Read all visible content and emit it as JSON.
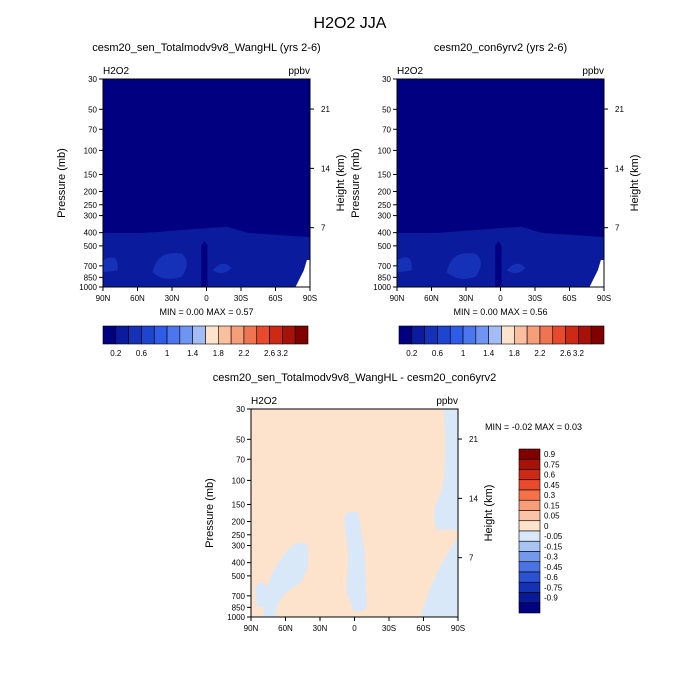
{
  "title": "H2O2 JJA",
  "chart_data": [
    {
      "type": "heatmap",
      "title": "cesm20_sen_Totalmodv9v8_WangHL (yrs 2-6)",
      "variable": "H2O2",
      "units": "ppbv",
      "xlabel": "",
      "ylabel": "Pressure (mb)",
      "ylabel_right": "Height (km)",
      "x_ticks": [
        "90N",
        "60N",
        "30N",
        "0",
        "30S",
        "60S",
        "90S"
      ],
      "y_ticks": [
        "30",
        "50",
        "70",
        "100",
        "150",
        "200",
        "250",
        "300",
        "400",
        "500",
        "700",
        "850",
        "1000"
      ],
      "height_ticks": [
        "21",
        "14",
        "7"
      ],
      "ylim": [
        1000,
        30
      ],
      "stats": {
        "min_label": "MIN =",
        "min": "0.00",
        "max_label": "MAX =",
        "max": "0.57"
      },
      "colorbar": {
        "labels": [
          "0.2",
          "0.6",
          "1",
          "1.4",
          "1.8",
          "2.2",
          "2.6",
          "3.2"
        ],
        "colors": [
          "#000080",
          "#0a1b9e",
          "#1531b8",
          "#1f45ce",
          "#2f5be6",
          "#4c76ee",
          "#6f94f2",
          "#a4bcf6",
          "#fde3cb",
          "#f9c0a0",
          "#f59e79",
          "#ef7450",
          "#e94a2d",
          "#cc2a15",
          "#a71208",
          "#800000"
        ]
      },
      "contours": [
        {
          "level": "0.0-0.2",
          "color": "#000080"
        },
        {
          "level": "0.2-0.4",
          "color": "#0a1b9e"
        },
        {
          "level": "0.4-0.6",
          "color": "#1531b8"
        }
      ]
    },
    {
      "type": "heatmap",
      "title": "cesm20_con6yrv2 (yrs 2-6)",
      "variable": "H2O2",
      "units": "ppbv",
      "xlabel": "",
      "ylabel": "Pressure (mb)",
      "ylabel_right": "Height (km)",
      "x_ticks": [
        "90N",
        "60N",
        "30N",
        "0",
        "30S",
        "60S",
        "90S"
      ],
      "y_ticks": [
        "30",
        "50",
        "70",
        "100",
        "150",
        "200",
        "250",
        "300",
        "400",
        "500",
        "700",
        "850",
        "1000"
      ],
      "height_ticks": [
        "21",
        "14",
        "7"
      ],
      "ylim": [
        1000,
        30
      ],
      "stats": {
        "min_label": "MIN =",
        "min": "0.00",
        "max_label": "MAX =",
        "max": "0.56"
      },
      "colorbar": {
        "labels": [
          "0.2",
          "0.6",
          "1",
          "1.4",
          "1.8",
          "2.2",
          "2.6",
          "3.2"
        ],
        "colors": [
          "#000080",
          "#0a1b9e",
          "#1531b8",
          "#1f45ce",
          "#2f5be6",
          "#4c76ee",
          "#6f94f2",
          "#a4bcf6",
          "#fde3cb",
          "#f9c0a0",
          "#f59e79",
          "#ef7450",
          "#e94a2d",
          "#cc2a15",
          "#a71208",
          "#800000"
        ]
      },
      "contours": [
        {
          "level": "0.0-0.2",
          "color": "#000080"
        },
        {
          "level": "0.2-0.4",
          "color": "#0a1b9e"
        },
        {
          "level": "0.4-0.6",
          "color": "#1531b8"
        }
      ]
    },
    {
      "type": "heatmap",
      "title": "cesm20_sen_Totalmodv9v8_WangHL - cesm20_con6yrv2",
      "variable": "H2O2",
      "units": "ppbv",
      "xlabel": "",
      "ylabel": "Pressure (mb)",
      "ylabel_right": "Height (km)",
      "x_ticks": [
        "90N",
        "60N",
        "30N",
        "0",
        "30S",
        "60S",
        "90S"
      ],
      "y_ticks": [
        "30",
        "50",
        "70",
        "100",
        "150",
        "200",
        "250",
        "300",
        "400",
        "500",
        "700",
        "850",
        "1000"
      ],
      "height_ticks": [
        "21",
        "14",
        "7"
      ],
      "ylim": [
        1000,
        30
      ],
      "stats": {
        "min_label": "MIN =",
        "min": "-0.02",
        "max_label": "MAX =",
        "max": "0.03"
      },
      "colorbar": {
        "labels": [
          "0.9",
          "0.75",
          "0.6",
          "0.45",
          "0.3",
          "0.15",
          "0.05",
          "0",
          "-0.05",
          "-0.15",
          "-0.3",
          "-0.45",
          "-0.6",
          "-0.75",
          "-0.9"
        ],
        "colors": [
          "#800000",
          "#a71208",
          "#cc2a15",
          "#e94a2d",
          "#f5714a",
          "#f89d7a",
          "#fbc4a6",
          "#fde3cb",
          "#d8e8f8",
          "#a8c4f2",
          "#7398ec",
          "#4a72e4",
          "#2a52d2",
          "#1433b4",
          "#081a95",
          "#000080"
        ]
      },
      "contours": [
        {
          "level": "0 to 0.05",
          "color": "#fde3cb"
        },
        {
          "level": "-0.05 to 0",
          "color": "#d8e8f8"
        }
      ]
    }
  ]
}
